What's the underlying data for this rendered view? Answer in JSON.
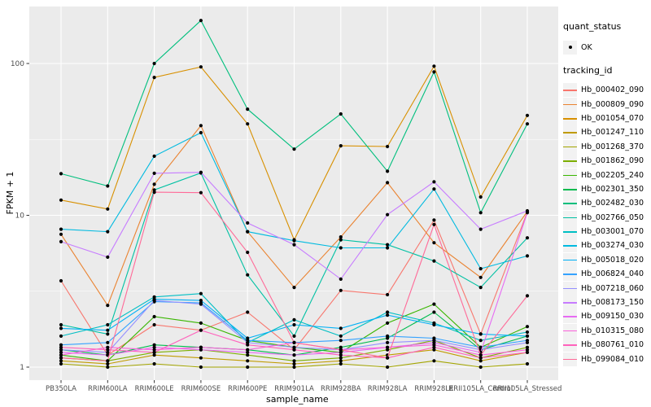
{
  "figure": {
    "panel_bg": "#EBEBEB",
    "grid_color": "#FFFFFF",
    "point_color": "#000000",
    "tick_text_color": "#4D4D4D",
    "title_text_color": "#000000"
  },
  "legend": {
    "quant_status_title": "quant_status",
    "ok_label": "OK",
    "tracking_title": "tracking_id"
  },
  "chart_data": {
    "type": "line",
    "xlabel": "sample_name",
    "ylabel": "FPKM + 1",
    "yscale": "log10",
    "ylim": [
      1,
      250
    ],
    "yticks": [
      "1",
      "10",
      "100"
    ],
    "grid": true,
    "legend_position": "right",
    "point_shape": "filled-circle",
    "categories": [
      "PB350LA",
      "RRIM600LA",
      "RRIM600LE",
      "RRIM600SE",
      "RRIM600PE",
      "RRIM901LA",
      "RRIM928BA",
      "RRIM928LA",
      "RRIM928LE",
      "RRII105LA_Control",
      "RRII105LA_Stressed"
    ],
    "series": [
      {
        "name": "Hb_000402_090",
        "color": "#F8766D",
        "values": [
          3.7,
          1.2,
          1.9,
          1.75,
          2.3,
          1.3,
          3.2,
          3.0,
          9.3,
          1.65,
          10.5
        ]
      },
      {
        "name": "Hb_000809_090",
        "color": "#EA8331",
        "values": [
          7.5,
          2.55,
          16,
          39,
          7.8,
          3.35,
          7.2,
          16.4,
          6.6,
          3.9,
          10.6
        ]
      },
      {
        "name": "Hb_001054_070",
        "color": "#D89000",
        "values": [
          12.6,
          11.0,
          81,
          95,
          40,
          6.9,
          28.7,
          28.4,
          96,
          13.2,
          45.5
        ]
      },
      {
        "name": "Hb_001247_110",
        "color": "#C09B00",
        "values": [
          1.1,
          1.05,
          1.2,
          1.15,
          1.1,
          1.05,
          1.1,
          1.2,
          1.3,
          1.1,
          1.25
        ]
      },
      {
        "name": "Hb_001268_370",
        "color": "#A3A500",
        "values": [
          1.05,
          1.0,
          1.05,
          1.0,
          1.0,
          1.0,
          1.05,
          1.0,
          1.1,
          1.0,
          1.05
        ]
      },
      {
        "name": "Hb_001862_090",
        "color": "#7CAE00",
        "values": [
          1.15,
          1.1,
          1.25,
          1.3,
          1.2,
          1.1,
          1.15,
          1.3,
          1.5,
          1.15,
          1.35
        ]
      },
      {
        "name": "Hb_002205_240",
        "color": "#39B600",
        "values": [
          1.2,
          1.1,
          2.15,
          1.95,
          1.5,
          1.35,
          1.25,
          1.95,
          2.6,
          1.35,
          1.85
        ]
      },
      {
        "name": "Hb_002301_350",
        "color": "#00BB4E",
        "values": [
          1.3,
          1.2,
          1.4,
          1.35,
          1.3,
          1.2,
          1.35,
          1.55,
          2.3,
          1.3,
          1.6
        ]
      },
      {
        "name": "Hb_002482_030",
        "color": "#00BF7D",
        "values": [
          18.8,
          15.6,
          100,
          192,
          50,
          27.3,
          46.5,
          19.5,
          88,
          10.4,
          40
        ]
      },
      {
        "name": "Hb_002766_050",
        "color": "#00C1A3",
        "values": [
          1.9,
          1.65,
          14.7,
          19,
          4.05,
          1.6,
          6.9,
          6.4,
          5.0,
          3.35,
          7.1
        ]
      },
      {
        "name": "Hb_003001_070",
        "color": "#00BFC4",
        "values": [
          1.6,
          1.9,
          2.9,
          3.05,
          1.45,
          2.05,
          1.6,
          2.3,
          1.95,
          1.5,
          1.7
        ]
      },
      {
        "name": "Hb_003274_030",
        "color": "#00BAE0",
        "values": [
          8.1,
          7.8,
          24.5,
          35,
          7.8,
          6.8,
          6.1,
          6.1,
          14.9,
          4.45,
          5.4
        ]
      },
      {
        "name": "Hb_005018_020",
        "color": "#00B0F6",
        "values": [
          1.8,
          1.75,
          2.8,
          2.75,
          1.55,
          1.9,
          1.8,
          2.2,
          1.9,
          1.65,
          1.6
        ]
      },
      {
        "name": "Hb_006824_040",
        "color": "#35A2FF",
        "values": [
          1.4,
          1.45,
          2.7,
          2.65,
          1.5,
          1.45,
          1.5,
          1.6,
          1.55,
          1.35,
          1.5
        ]
      },
      {
        "name": "Hb_007218_060",
        "color": "#9590FF",
        "values": [
          1.3,
          1.25,
          2.75,
          2.6,
          1.45,
          1.35,
          1.3,
          1.45,
          1.5,
          1.3,
          1.45
        ]
      },
      {
        "name": "Hb_008173_150",
        "color": "#C77CFF",
        "values": [
          6.7,
          5.3,
          18.9,
          19.2,
          8.9,
          6.4,
          3.8,
          10.1,
          16.6,
          8.1,
          10.7
        ]
      },
      {
        "name": "Hb_009150_030",
        "color": "#E76BF3",
        "values": [
          1.25,
          1.2,
          1.35,
          1.3,
          1.25,
          1.2,
          1.25,
          1.35,
          1.45,
          1.25,
          10.4
        ]
      },
      {
        "name": "Hb_010315_080",
        "color": "#FA62DB",
        "values": [
          1.2,
          1.35,
          1.3,
          1.35,
          1.3,
          1.45,
          1.3,
          1.35,
          1.4,
          1.2,
          1.3
        ]
      },
      {
        "name": "Hb_080761_010",
        "color": "#FF62BC",
        "values": [
          1.35,
          1.3,
          1.25,
          1.75,
          1.4,
          1.3,
          1.2,
          1.15,
          1.35,
          1.15,
          1.25
        ]
      },
      {
        "name": "Hb_099084_010",
        "color": "#FF6A98",
        "values": [
          1.15,
          1.1,
          14.2,
          14.1,
          5.7,
          1.45,
          1.3,
          1.15,
          8.7,
          1.2,
          2.95
        ]
      }
    ]
  }
}
